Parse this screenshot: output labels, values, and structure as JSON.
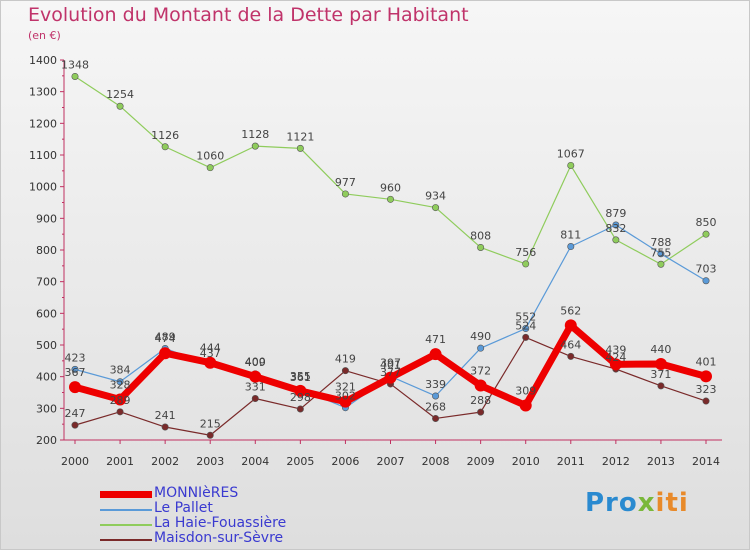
{
  "title": "Evolution du Montant de la Dette par Habitant",
  "subtitle": "(en €)",
  "logo": {
    "part1": "Pro",
    "part2": "x",
    "part3": "iti"
  },
  "chart_data": {
    "type": "line",
    "x": [
      "2000",
      "2001",
      "2002",
      "2003",
      "2004",
      "2005",
      "2006",
      "2007",
      "2008",
      "2009",
      "2010",
      "2011",
      "2012",
      "2013",
      "2014"
    ],
    "ylim": [
      200,
      1400
    ],
    "yticks": [
      200,
      300,
      400,
      500,
      600,
      700,
      800,
      900,
      1000,
      1100,
      1200,
      1300,
      1400
    ],
    "grid": false,
    "legend": "bottom-left",
    "series": [
      {
        "name": "Maisdon-sur-Sèvre",
        "color": "#7a2a2a",
        "width": 1.2,
        "values": [
          247,
          289,
          241,
          215,
          331,
          298,
          419,
          377,
          268,
          288,
          524,
          464,
          424,
          371,
          323
        ]
      },
      {
        "name": "La Haie-Fouassière",
        "color": "#8fcc5c",
        "width": 1.2,
        "values": [
          1348,
          1254,
          1126,
          1060,
          1128,
          1121,
          977,
          960,
          934,
          808,
          756,
          1067,
          832,
          755,
          850
        ]
      },
      {
        "name": "Le Pallet",
        "color": "#5a9ad8",
        "width": 1.2,
        "values": [
          423,
          384,
          489,
          437,
          409,
          361,
          302,
          401,
          339,
          490,
          552,
          811,
          879,
          788,
          703
        ]
      },
      {
        "name": "MONNIèRES",
        "color": "#ee0000",
        "width": 7,
        "values": [
          367,
          328,
          474,
          444,
          400,
          355,
          321,
          397,
          471,
          372,
          309,
          562,
          439,
          440,
          401
        ]
      }
    ]
  }
}
